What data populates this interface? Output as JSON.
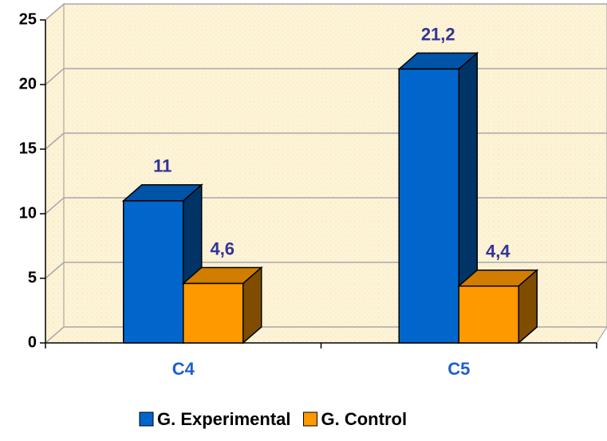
{
  "chart_data": {
    "type": "bar3d",
    "categories": [
      "C4",
      "C5"
    ],
    "series": [
      {
        "name": "G. Experimental",
        "color": "#0066cc",
        "values": [
          11,
          21.2
        ],
        "value_labels": [
          "11",
          "21,2"
        ]
      },
      {
        "name": "G. Control",
        "color": "#ff9900",
        "values": [
          4.6,
          4.4
        ],
        "value_labels": [
          "4,6",
          "4,4"
        ]
      }
    ],
    "ylim": [
      0,
      25
    ],
    "yticks": [
      0,
      5,
      10,
      15,
      20,
      25
    ],
    "grid": true,
    "legend": "bottom"
  }
}
